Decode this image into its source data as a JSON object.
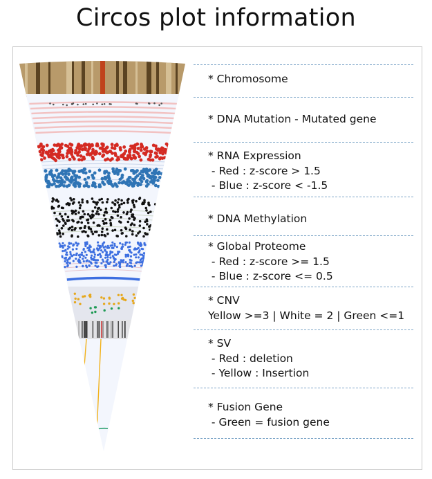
{
  "title": "Circos plot information",
  "legend": [
    {
      "key": "chromosome",
      "label": "* Chromosome",
      "lines": []
    },
    {
      "key": "dna_mutation",
      "label": "* DNA Mutation - Mutated gene",
      "lines": []
    },
    {
      "key": "rna_expression",
      "label": "* RNA Expression",
      "lines": [
        " - Red : z-score > 1.5",
        " - Blue : z-score < -1.5"
      ]
    },
    {
      "key": "dna_methylation",
      "label": "* DNA Methylation",
      "lines": []
    },
    {
      "key": "global_proteome",
      "label": "* Global Proteome",
      "lines": [
        " - Red : z-score >= 1.5",
        " - Blue : z-score <= 0.5"
      ]
    },
    {
      "key": "cnv",
      "label": "* CNV",
      "lines": [
        "Yellow >=3 | White = 2 | Green <=1"
      ]
    },
    {
      "key": "sv",
      "label": "* SV",
      "lines": [
        " - Red : deletion",
        " - Yellow : Insertion"
      ]
    },
    {
      "key": "fusion_gene",
      "label": "* Fusion Gene",
      "lines": [
        " - Green = fusion gene"
      ]
    }
  ],
  "colors": {
    "chromosome_band": "#b89a6a",
    "dark_band": "#4a3415",
    "centromere": "#c0431c",
    "mutation_ring": "#f2c2c2",
    "rna_red": "#d42a22",
    "rna_blue": "#2f74b5",
    "methylation": "#111111",
    "proteome_blue": "#3d6fe0",
    "cnv_yellow": "#e6a81e",
    "cnv_green": "#1f9a55",
    "sv_yellow": "#f2b21c",
    "fusion_green": "#3aa67a",
    "divider": "#7ea6c8"
  }
}
